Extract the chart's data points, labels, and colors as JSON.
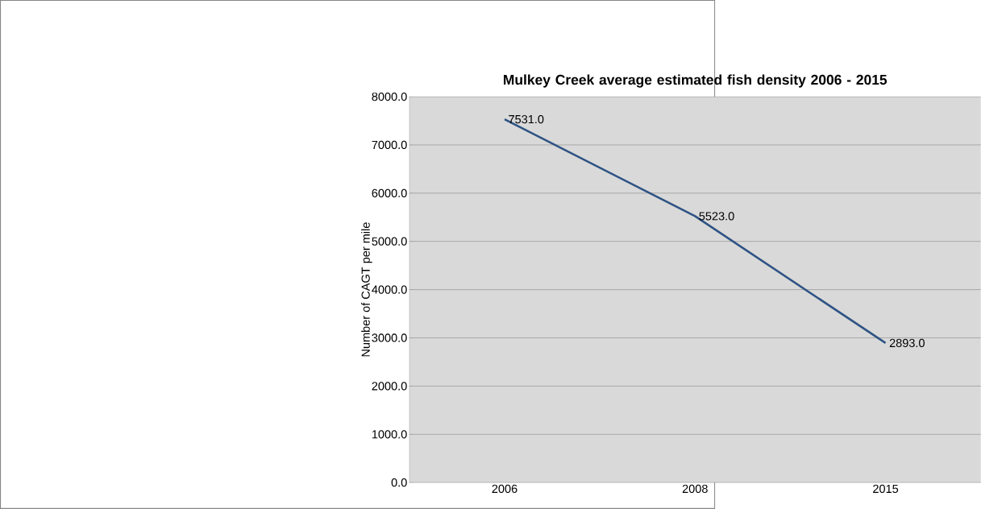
{
  "chart_data": {
    "type": "line",
    "title": "Mulkey Creek average estimated fish density 2006 - 2015",
    "ylabel": "Number of CAGT per mile",
    "categories": [
      "2006",
      "2008",
      "2015"
    ],
    "values": [
      7531,
      5523,
      2893
    ],
    "value_labels": [
      "7531.0",
      "5523.0",
      "2893.0"
    ],
    "color": "#2e5384",
    "ylim": [
      0,
      8000
    ],
    "yticks": [
      {
        "value": 0,
        "label": "0.0"
      },
      {
        "value": 1000,
        "label": "1000.0"
      },
      {
        "value": 2000,
        "label": "2000.0"
      },
      {
        "value": 3000,
        "label": "3000.0"
      },
      {
        "value": 4000,
        "label": "4000.0"
      },
      {
        "value": 5000,
        "label": "5000.0"
      },
      {
        "value": 6000,
        "label": "6000.0"
      },
      {
        "value": 7000,
        "label": "7000.0"
      },
      {
        "value": 8000,
        "label": "8000.0"
      }
    ],
    "grid": "y"
  }
}
